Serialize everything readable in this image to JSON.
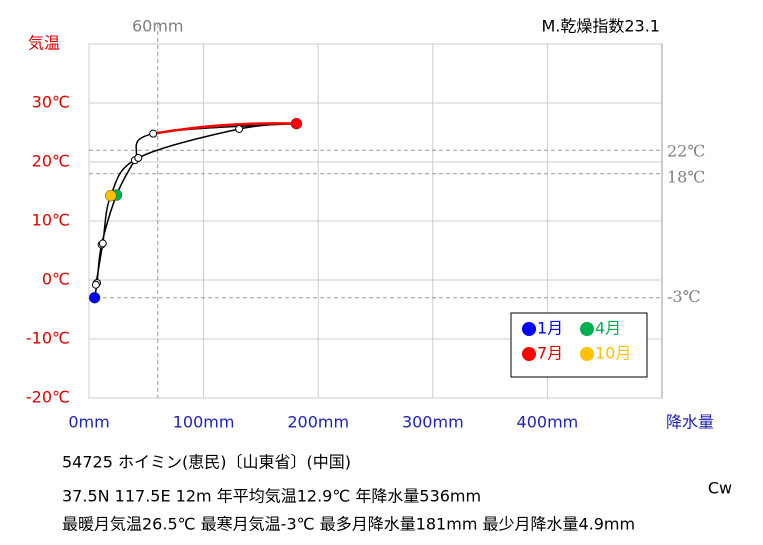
{
  "chart_data": {
    "type": "climograph",
    "y_label": "気温",
    "x_label": "降水量",
    "index_note": "M.乾燥指数23.1",
    "climate_class": "Cw",
    "x": [
      4.9,
      7,
      11,
      24,
      40,
      56,
      181,
      131,
      43,
      19,
      12,
      6
    ],
    "values": [
      -3,
      -0.5,
      6,
      14.4,
      20.3,
      24.8,
      26.5,
      25.6,
      20.7,
      14.3,
      6.2,
      -0.8
    ],
    "line_color": "#000000",
    "hot_segment_color": "#ff0000",
    "xlim": [
      0,
      500
    ],
    "ylim": [
      -20,
      40
    ],
    "xticks": [
      {
        "value": 0,
        "label": "0mm"
      },
      {
        "value": 100,
        "label": "100mm"
      },
      {
        "value": 200,
        "label": "200mm"
      },
      {
        "value": 300,
        "label": "300mm"
      },
      {
        "value": 400,
        "label": "400mm"
      }
    ],
    "yticks": [
      {
        "value": -20,
        "label": "-20℃"
      },
      {
        "value": -10,
        "label": "-10℃"
      },
      {
        "value": 0,
        "label": "0℃"
      },
      {
        "value": 10,
        "label": "10℃"
      },
      {
        "value": 20,
        "label": "20℃"
      },
      {
        "value": 30,
        "label": "30℃"
      },
      40
    ],
    "grid": true,
    "reference_x": [
      {
        "value": 60,
        "label": "60mm"
      }
    ],
    "reference_y": [
      {
        "value": 22,
        "label": "22℃"
      },
      {
        "value": 18,
        "label": "18℃"
      },
      {
        "value": -3,
        "label": "-3℃"
      }
    ],
    "legend": [
      {
        "name": "1月",
        "color": "#0000ff",
        "point": 0
      },
      {
        "name": "4月",
        "color": "#00b050",
        "point": 3
      },
      {
        "name": "7月",
        "color": "#ff0000",
        "point": 6
      },
      {
        "name": "10月",
        "color": "#ffc000",
        "point": 9
      }
    ],
    "info": [
      "54725 ホイミン(恵民)〔山東省〕(中国)",
      "37.5N 117.5E 12m 年平均気温12.9℃ 年降水量536mm",
      "最暖月気温26.5℃ 最寒月気温-3℃ 最多月降水量181mm 最少月降水量4.9mm"
    ]
  }
}
